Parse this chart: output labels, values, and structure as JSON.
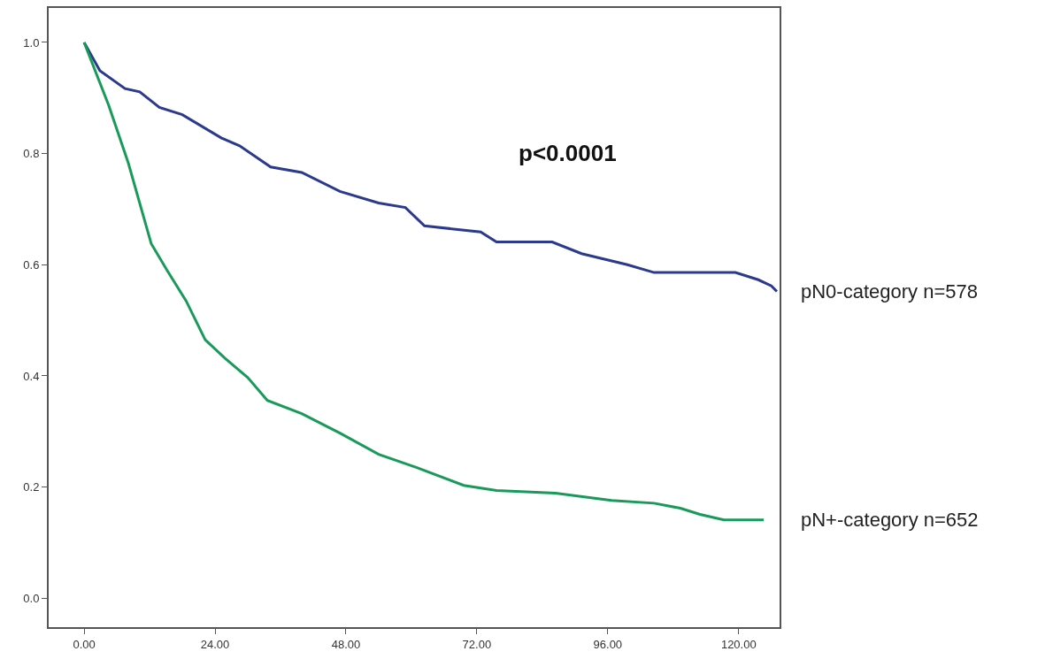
{
  "chart_data": {
    "type": "line",
    "xlim": [
      -6.5,
      127.5
    ],
    "ylim": [
      -0.052,
      1.062
    ],
    "xticks": [
      {
        "value": 0,
        "label": "0.00"
      },
      {
        "value": 24,
        "label": "24.00"
      },
      {
        "value": 48,
        "label": "48.00"
      },
      {
        "value": 72,
        "label": "72.00"
      },
      {
        "value": 96,
        "label": "96.00"
      },
      {
        "value": 120,
        "label": "120.00"
      }
    ],
    "yticks": [
      {
        "value": 0,
        "label": "0.0"
      },
      {
        "value": 0.2,
        "label": "0.2"
      },
      {
        "value": 0.4,
        "label": "0.4"
      },
      {
        "value": 0.6,
        "label": "0.6"
      },
      {
        "value": 0.8,
        "label": "0.8"
      },
      {
        "value": 1.0,
        "label": "1.0"
      }
    ],
    "legend": false,
    "line_style": "solid",
    "annotations": [
      "p<0.0001"
    ],
    "series": [
      {
        "name": "pN0-category n=578",
        "color": "#2b3a8c",
        "x": [
          0,
          2.9,
          7.5,
          10.2,
          13.8,
          18,
          25.2,
          28.5,
          34.2,
          39.9,
          46.9,
          54,
          58.9,
          62.4,
          72.7,
          75.6,
          85.8,
          91.2,
          99.6,
          104.5,
          119.4,
          123.6,
          126,
          127
        ],
        "values": [
          1.0,
          0.949,
          0.917,
          0.911,
          0.883,
          0.87,
          0.828,
          0.814,
          0.776,
          0.766,
          0.732,
          0.711,
          0.703,
          0.67,
          0.659,
          0.641,
          0.641,
          0.62,
          0.6,
          0.586,
          0.586,
          0.573,
          0.562,
          0.552
        ]
      },
      {
        "name": "pN+-category n=652",
        "color": "#1a9a5a",
        "x": [
          0,
          4.5,
          8.1,
          12.3,
          15.2,
          18.7,
          22.2,
          25.8,
          30,
          33.6,
          39.9,
          46.9,
          54,
          61,
          69.6,
          75.6,
          86.4,
          96.7,
          104.5,
          109.3,
          112.9,
          117.3,
          121.9,
          124.6
        ],
        "values": [
          1.0,
          0.887,
          0.783,
          0.638,
          0.59,
          0.535,
          0.465,
          0.432,
          0.397,
          0.356,
          0.332,
          0.297,
          0.259,
          0.235,
          0.203,
          0.194,
          0.189,
          0.176,
          0.171,
          0.162,
          0.151,
          0.141,
          0.141,
          0.141
        ]
      }
    ]
  }
}
